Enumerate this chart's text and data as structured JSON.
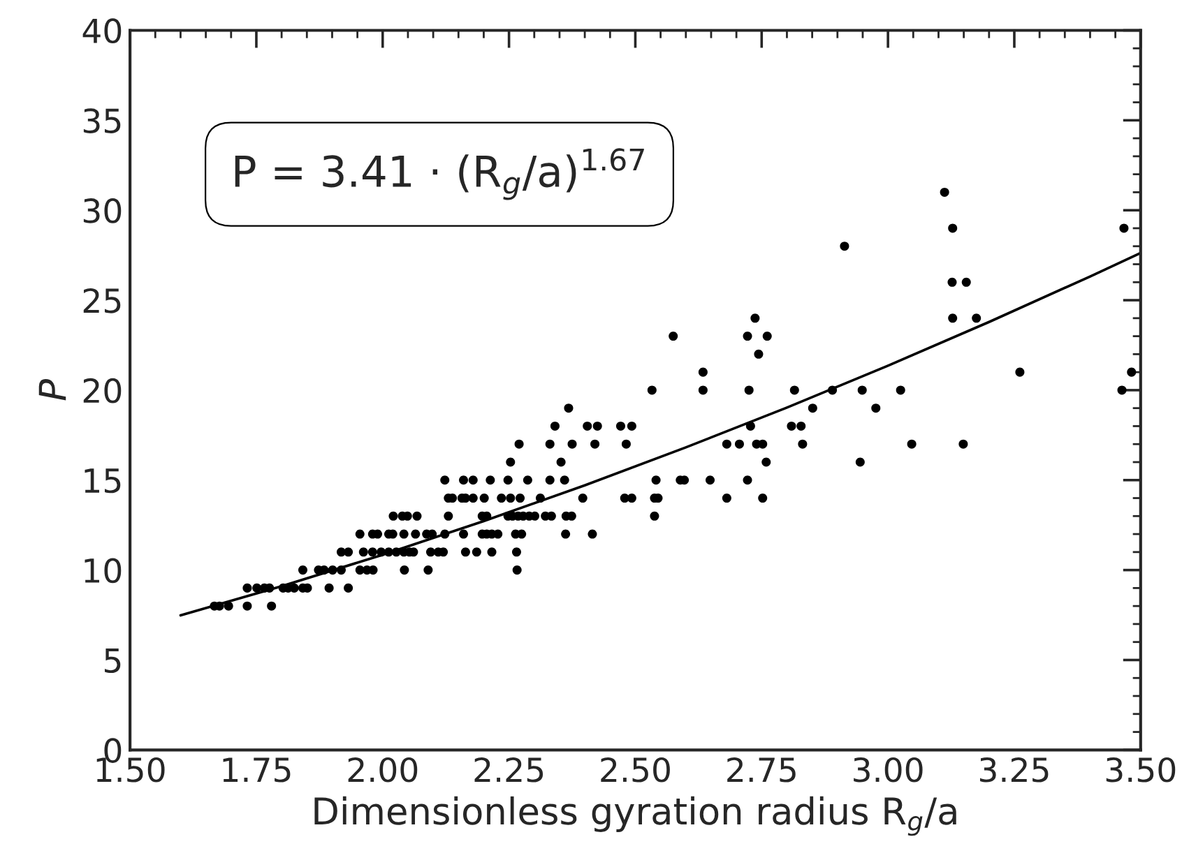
{
  "chart_data": {
    "type": "scatter",
    "xlabel": "Dimensionless gyration radius R$_{g}$/a",
    "ylabel": "P",
    "xlim": [
      1.5,
      3.5
    ],
    "ylim": [
      0,
      40
    ],
    "xticks": [
      {
        "value": 1.5,
        "label": "1.50"
      },
      {
        "value": 1.75,
        "label": "1.75"
      },
      {
        "value": 2.0,
        "label": "2.00"
      },
      {
        "value": 2.25,
        "label": "2.25"
      },
      {
        "value": 2.5,
        "label": "2.50"
      },
      {
        "value": 2.75,
        "label": "2.75"
      },
      {
        "value": 3.0,
        "label": "3.00"
      },
      {
        "value": 3.25,
        "label": "3.25"
      },
      {
        "value": 3.5,
        "label": "3.50"
      }
    ],
    "yticks": [
      0,
      5,
      10,
      15,
      20,
      25,
      30,
      35,
      40
    ],
    "grid": false,
    "legend": false,
    "annotations": [
      "P = 3.41 · (R$_{g}$/a)$^{1.67}$"
    ],
    "series": [
      {
        "marker": "circle",
        "color": "#000000",
        "x": [
          1.667,
          1.677,
          1.695,
          1.732,
          1.78,
          1.732,
          1.751,
          1.766,
          1.776,
          1.803,
          1.813,
          1.825,
          1.842,
          1.851,
          1.894,
          1.932,
          1.842,
          1.873,
          1.884,
          1.901,
          1.918,
          1.955,
          1.969,
          1.981,
          2.043,
          2.09,
          2.266,
          1.918,
          1.932,
          1.962,
          1.98,
          1.997,
          2.012,
          2.027,
          2.042,
          2.053,
          2.061,
          2.095,
          2.11,
          2.12,
          2.164,
          2.186,
          2.216,
          2.265,
          1.955,
          1.98,
          1.99,
          2.012,
          2.02,
          2.042,
          2.065,
          2.087,
          2.098,
          2.123,
          2.16,
          2.197,
          2.206,
          2.216,
          2.228,
          2.263,
          2.275,
          2.362,
          2.415,
          2.021,
          2.039,
          2.049,
          2.068,
          2.13,
          2.197,
          2.206,
          2.248,
          2.257,
          2.268,
          2.278,
          2.29,
          2.301,
          2.322,
          2.334,
          2.363,
          2.374,
          2.538,
          2.13,
          2.138,
          2.157,
          2.164,
          2.179,
          2.201,
          2.235,
          2.253,
          2.272,
          2.312,
          2.396,
          2.479,
          2.493,
          2.538,
          2.545,
          2.681,
          2.752,
          2.123,
          2.16,
          2.179,
          2.213,
          2.248,
          2.287,
          2.331,
          2.36,
          2.541,
          2.589,
          2.597,
          2.648,
          2.722,
          2.253,
          2.353,
          2.759,
          2.945,
          2.27,
          2.331,
          2.375,
          2.42,
          2.482,
          2.681,
          2.706,
          2.74,
          2.752,
          2.831,
          3.047,
          3.149,
          2.341,
          2.405,
          2.425,
          2.471,
          2.493,
          2.728,
          2.809,
          2.828,
          2.368,
          2.851,
          2.976,
          2.533,
          2.634,
          2.725,
          2.815,
          2.89,
          2.949,
          3.025,
          3.463,
          2.634,
          3.261,
          3.482,
          2.744,
          2.575,
          2.722,
          2.761,
          2.737,
          3.128,
          3.175,
          3.127,
          3.155,
          2.914,
          3.128,
          3.467,
          3.112
        ],
        "values": [
          8,
          8,
          8,
          8,
          8,
          9,
          9,
          9,
          9,
          9,
          9,
          9,
          9,
          9,
          9,
          9,
          10,
          10,
          10,
          10,
          10,
          10,
          10,
          10,
          10,
          10,
          10,
          11,
          11,
          11,
          11,
          11,
          11,
          11,
          11,
          11,
          11,
          11,
          11,
          11,
          11,
          11,
          11,
          11,
          12,
          12,
          12,
          12,
          12,
          12,
          12,
          12,
          12,
          12,
          12,
          12,
          12,
          12,
          12,
          12,
          12,
          12,
          12,
          13,
          13,
          13,
          13,
          13,
          13,
          13,
          13,
          13,
          13,
          13,
          13,
          13,
          13,
          13,
          13,
          13,
          13,
          14,
          14,
          14,
          14,
          14,
          14,
          14,
          14,
          14,
          14,
          14,
          14,
          14,
          14,
          14,
          14,
          14,
          15,
          15,
          15,
          15,
          15,
          15,
          15,
          15,
          15,
          15,
          15,
          15,
          15,
          16,
          16,
          16,
          16,
          17,
          17,
          17,
          17,
          17,
          17,
          17,
          17,
          17,
          17,
          17,
          17,
          18,
          18,
          18,
          18,
          18,
          18,
          18,
          18,
          19,
          19,
          19,
          20,
          20,
          20,
          20,
          20,
          20,
          20,
          20,
          21,
          21,
          21,
          22,
          23,
          23,
          23,
          24,
          24,
          24,
          26,
          26,
          28,
          29,
          29,
          31
        ]
      },
      {
        "type": "line",
        "marker": "none",
        "line_style": "solid",
        "color": "#000000",
        "x": [
          1.6,
          1.8,
          2.0,
          2.2,
          2.4,
          2.6,
          2.8,
          3.0,
          3.2,
          3.4,
          3.5
        ],
        "values": [
          7.48,
          9.1,
          10.85,
          12.72,
          14.71,
          16.82,
          19.03,
          21.36,
          23.79,
          26.32,
          27.63
        ]
      }
    ]
  }
}
